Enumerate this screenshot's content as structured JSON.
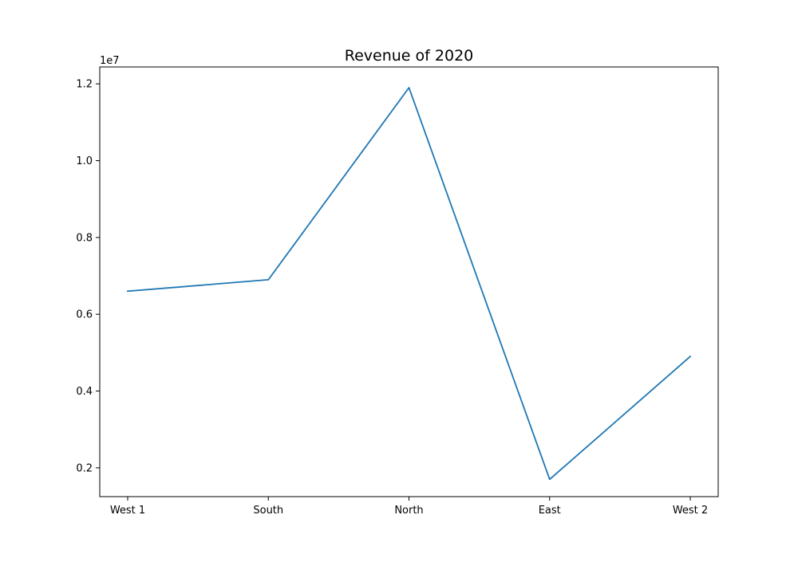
{
  "chart_data": {
    "type": "line",
    "title": "Revenue of 2020",
    "xlabel": "",
    "ylabel": "",
    "categories": [
      "West 1",
      "South",
      "North",
      "East",
      "West 2"
    ],
    "series": [
      {
        "values": [
          6600000,
          6900000,
          11900000,
          1700000,
          4900000
        ]
      }
    ],
    "ylim": [
      1250000,
      12440000
    ],
    "yticks": [
      2000000,
      4000000,
      6000000,
      8000000,
      10000000,
      12000000
    ],
    "ytick_labels": [
      "0.2",
      "0.4",
      "0.6",
      "0.8",
      "1.0",
      "1.2"
    ],
    "y_offset_label": "1e7",
    "line_color": "#1f77b4",
    "grid": false,
    "legend": "none"
  }
}
